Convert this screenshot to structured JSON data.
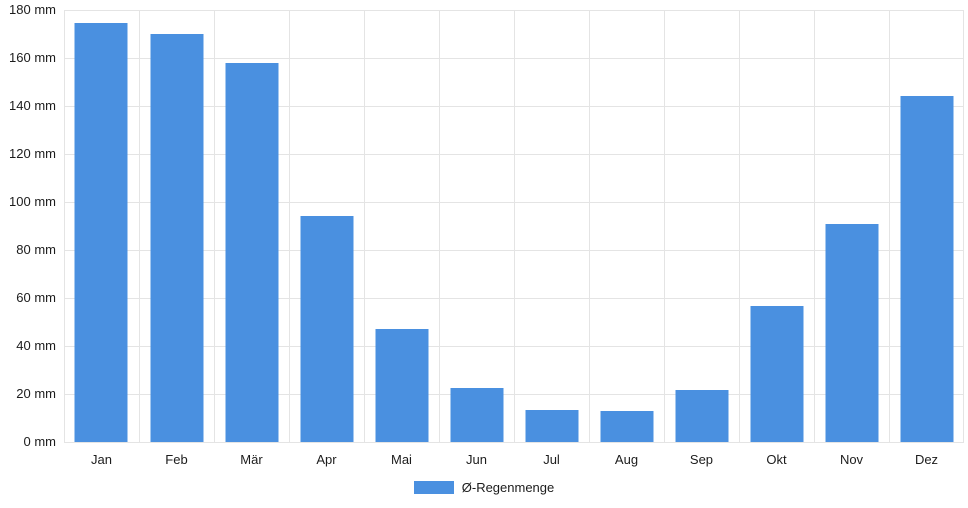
{
  "chart_data": {
    "type": "bar",
    "title": "",
    "xlabel": "",
    "ylabel": "",
    "unit": "mm",
    "categories": [
      "Jan",
      "Feb",
      "Mär",
      "Apr",
      "Mai",
      "Jun",
      "Jul",
      "Aug",
      "Sep",
      "Okt",
      "Nov",
      "Dez"
    ],
    "series": [
      {
        "name": "Ø-Regenmenge",
        "values": [
          174.5,
          170,
          158,
          94,
          47,
          22.4,
          13.5,
          13,
          21.7,
          56.5,
          91,
          144
        ]
      }
    ],
    "ylim": [
      0,
      180
    ],
    "ytick_step": 20,
    "ytick_labels": [
      "0 mm",
      "20 mm",
      "40 mm",
      "60 mm",
      "80 mm",
      "100 mm",
      "120 mm",
      "140 mm",
      "160 mm",
      "180 mm"
    ],
    "grid": true,
    "legend_position": "bottom"
  },
  "legend": {
    "label": "Ø-Regenmenge"
  },
  "colors": {
    "bar": "#4a90e0",
    "grid": "#e4e4e4",
    "axis_text": "#1c1c1c",
    "background": "#ffffff"
  }
}
